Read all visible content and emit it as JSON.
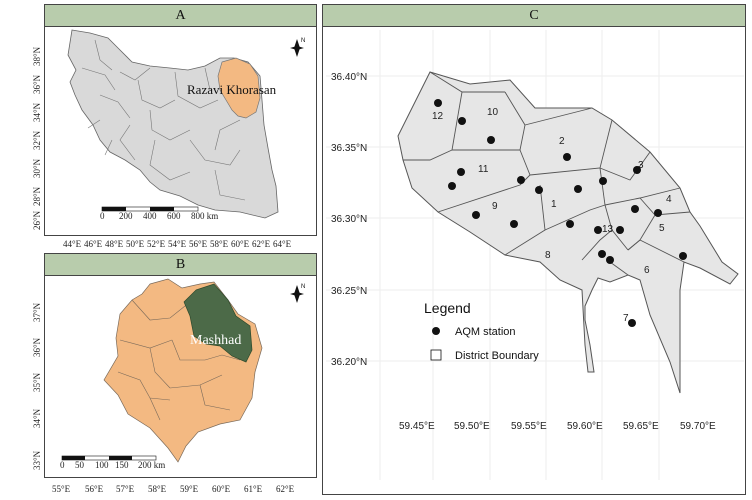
{
  "panels": {
    "a": {
      "title": "A",
      "province_label": "Razavi Khorasan",
      "x_ticks": [
        "44°E",
        "46°E",
        "48°E",
        "50°E",
        "52°E",
        "54°E",
        "56°E",
        "58°E",
        "60°E",
        "62°E",
        "64°E"
      ],
      "y_ticks": [
        "38°N",
        "36°N",
        "34°N",
        "32°N",
        "30°N",
        "28°N",
        "26°N"
      ],
      "scale_ticks": [
        "0",
        "200",
        "400",
        "600",
        "800 km"
      ],
      "north_label": "N"
    },
    "b": {
      "title": "B",
      "city_label": "Mashhad",
      "x_ticks": [
        "55°E",
        "56°E",
        "57°E",
        "58°E",
        "59°E",
        "60°E",
        "61°E",
        "62°E"
      ],
      "y_ticks": [
        "37°N",
        "36°N",
        "35°N",
        "34°N",
        "33°N"
      ],
      "scale_ticks": [
        "0",
        "50",
        "100",
        "150",
        "200 km"
      ],
      "north_label": "N"
    },
    "c": {
      "title": "C",
      "x_ticks": [
        "59.45°E",
        "59.50°E",
        "59.55°E",
        "59.60°E",
        "59.65°E",
        "59.70°E"
      ],
      "y_ticks": [
        "36.40°N",
        "36.35°N",
        "36.30°N",
        "36.25°N",
        "36.20°N"
      ],
      "district_labels": [
        "1",
        "2",
        "3",
        "4",
        "5",
        "6",
        "7",
        "8",
        "9",
        "10",
        "11",
        "12",
        "13"
      ],
      "legend": {
        "title": "Legend",
        "station_label": "AQM station",
        "boundary_label": "District Boundary"
      },
      "stations_count": 26
    }
  },
  "colors": {
    "header_bg": "#b8ccac",
    "country_fill": "#d9d9d9",
    "highlight_fill": "#f3b982",
    "mashhad_fill": "#4c6a48",
    "district_fill": "#e6e6e6"
  }
}
